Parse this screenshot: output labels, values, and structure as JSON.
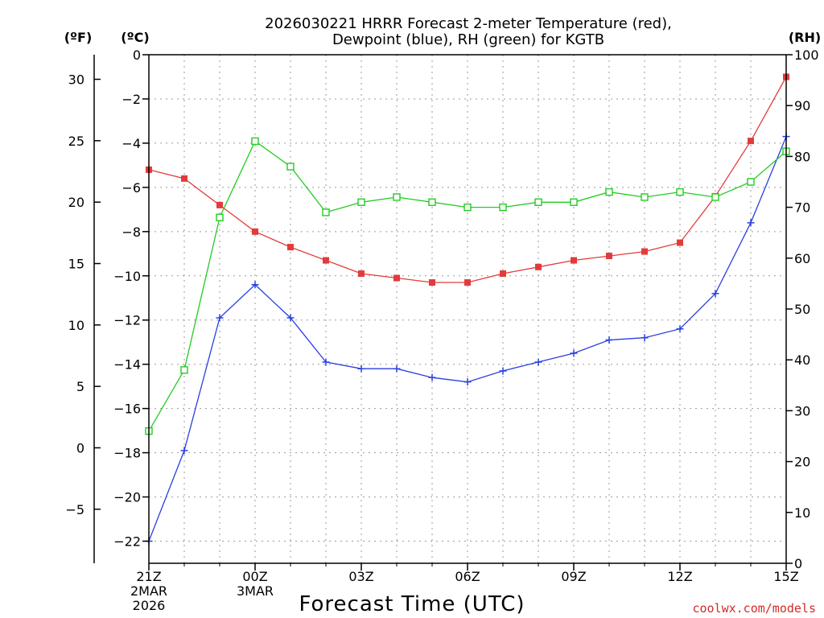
{
  "chart_data": {
    "type": "line",
    "title_line1": "2026030221 HRRR Forecast 2-meter Temperature (red),",
    "title_line2": "Dewpoint (blue), RH (green) for KGTB",
    "xlabel": "Forecast Time (UTC)",
    "credit": "coolwx.com/models",
    "units": {
      "fahrenheit": "(ºF)",
      "celsius": "(ºC)",
      "rh": "(RH)"
    },
    "x_hours": [
      0,
      1,
      2,
      3,
      4,
      5,
      6,
      7,
      8,
      9,
      10,
      11,
      12,
      13,
      14,
      15,
      16,
      17,
      18
    ],
    "x_ticks": [
      {
        "hour": 0,
        "lines": [
          "21Z",
          "2MAR",
          "2026"
        ]
      },
      {
        "hour": 3,
        "lines": [
          "00Z",
          "3MAR"
        ]
      },
      {
        "hour": 6,
        "lines": [
          "03Z"
        ]
      },
      {
        "hour": 9,
        "lines": [
          "06Z"
        ]
      },
      {
        "hour": 12,
        "lines": [
          "09Z"
        ]
      },
      {
        "hour": 15,
        "lines": [
          "12Z"
        ]
      },
      {
        "hour": 18,
        "lines": [
          "15Z"
        ]
      }
    ],
    "ylim_c": [
      -23,
      0
    ],
    "yticks_c": [
      "0",
      "−2",
      "−4",
      "−6",
      "−8",
      "−10",
      "−12",
      "−14",
      "−16",
      "−18",
      "−20",
      "−22"
    ],
    "yticks_c_values": [
      0,
      -2,
      -4,
      -6,
      -8,
      -10,
      -12,
      -14,
      -16,
      -18,
      -20,
      -22
    ],
    "yticks_f": [
      "30",
      "25",
      "20",
      "15",
      "10",
      "5",
      "0",
      "−5"
    ],
    "yticks_f_values": [
      30,
      25,
      20,
      15,
      10,
      5,
      0,
      -5
    ],
    "ylim_rh": [
      0,
      100
    ],
    "yticks_rh": [
      "100",
      "90",
      "80",
      "70",
      "60",
      "50",
      "40",
      "30",
      "20",
      "10",
      "0"
    ],
    "yticks_rh_values": [
      100,
      90,
      80,
      70,
      60,
      50,
      40,
      30,
      20,
      10,
      0
    ],
    "grid": true,
    "colors": {
      "temperature": "#e23b3b",
      "dewpoint": "#2a3fe0",
      "rh": "#22cc22",
      "grid": "#9a9a9a"
    },
    "series": [
      {
        "name": "Temperature",
        "axis": "c",
        "marker": "filled-square",
        "values": [
          -5.2,
          -5.6,
          -6.8,
          -8.0,
          -8.7,
          -9.3,
          -9.9,
          -10.1,
          -10.3,
          -10.3,
          -9.9,
          -9.6,
          -9.3,
          -9.1,
          -8.9,
          -8.5,
          -6.4,
          -3.9,
          -1.0
        ]
      },
      {
        "name": "Dewpoint",
        "axis": "c",
        "marker": "plus",
        "values": [
          -22.0,
          -17.9,
          -11.9,
          -10.4,
          -11.9,
          -13.9,
          -14.2,
          -14.2,
          -14.6,
          -14.8,
          -14.3,
          -13.9,
          -13.5,
          -12.9,
          -12.8,
          -12.4,
          -10.8,
          -7.6,
          -3.7
        ]
      },
      {
        "name": "RH",
        "axis": "rh",
        "marker": "open-square",
        "values": [
          26,
          38,
          68,
          83,
          78,
          69,
          71,
          72,
          71,
          70,
          70,
          71,
          71,
          73,
          72,
          73,
          72,
          75,
          81
        ]
      }
    ]
  }
}
